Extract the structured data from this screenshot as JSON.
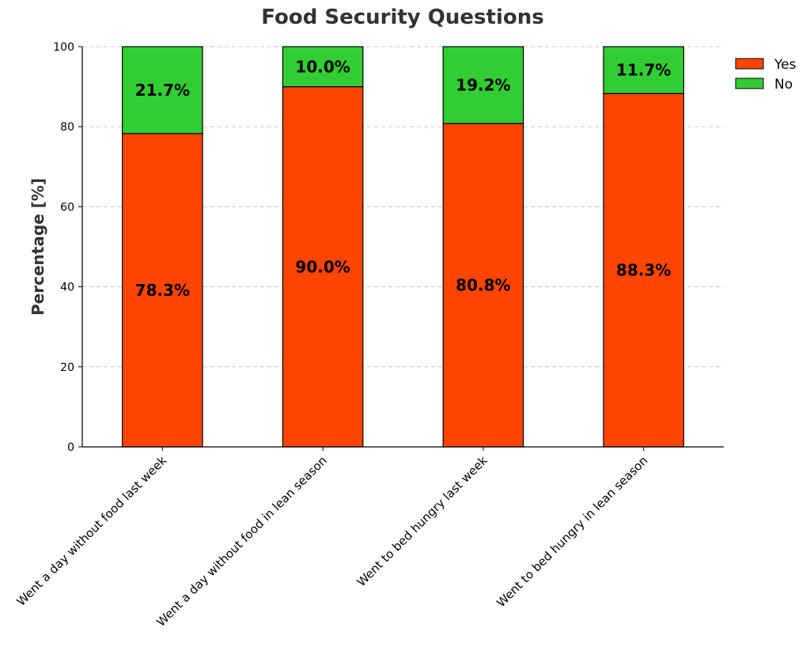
{
  "chart_data": {
    "type": "bar",
    "stacked": true,
    "title": "Food Security Questions",
    "xlabel": "",
    "ylabel": "Percentage [%]",
    "ylim": [
      0,
      100
    ],
    "yticks": [
      0,
      20,
      40,
      60,
      80,
      100
    ],
    "grid": "y-dashed",
    "legend_position": "top-right",
    "categories": [
      "Went a day without food last week",
      "Went a day without food in lean season",
      "Went to bed hungry last week",
      "Went to bed hungry in lean season"
    ],
    "series": [
      {
        "name": "Yes",
        "color": "#FF4500",
        "values": [
          78.3,
          90.0,
          80.8,
          88.3
        ],
        "labels": [
          "78.3%",
          "90.0%",
          "80.8%",
          "88.3%"
        ]
      },
      {
        "name": "No",
        "color": "#32CD32",
        "values": [
          21.7,
          10.0,
          19.2,
          11.7
        ],
        "labels": [
          "21.7%",
          "10.0%",
          "19.2%",
          "11.7%"
        ]
      }
    ]
  }
}
